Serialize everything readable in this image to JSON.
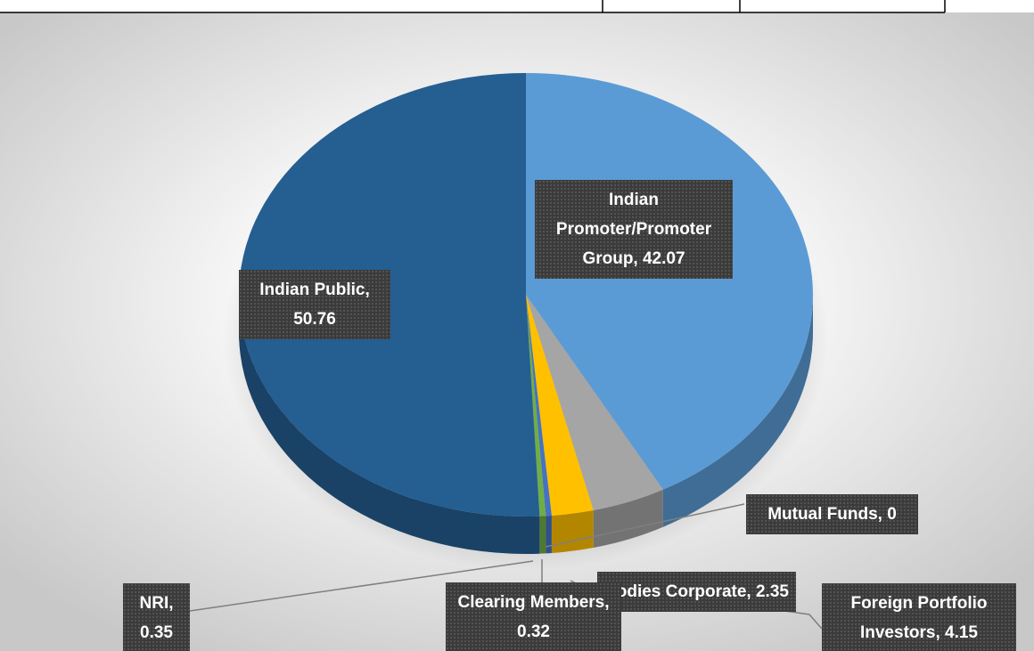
{
  "chart_data": {
    "type": "pie3d",
    "categories": [
      "Indian Promoter/Promoter Group",
      "Foreign Portfolio Investors",
      "Bodies Corporate",
      "Mutual Funds",
      "Clearing Members",
      "NRI",
      "Indian Public"
    ],
    "values": [
      42.07,
      4.15,
      2.35,
      0,
      0.32,
      0.35,
      50.76
    ],
    "value_labels": [
      "Indian Promoter/Promoter Group, 42.07",
      "Foreign Portfolio Investors, 4.15",
      "Bodies Corporate, 2.35",
      "Mutual Funds, 0",
      "Clearing Members, 0.32",
      "NRI, 0.35",
      "Indian Public, 50.76"
    ],
    "colors": [
      "#5b9bd5",
      "#a5a5a5",
      "#ffc000",
      "#264478",
      "#4472c4",
      "#70ad47",
      "#255e91"
    ]
  }
}
